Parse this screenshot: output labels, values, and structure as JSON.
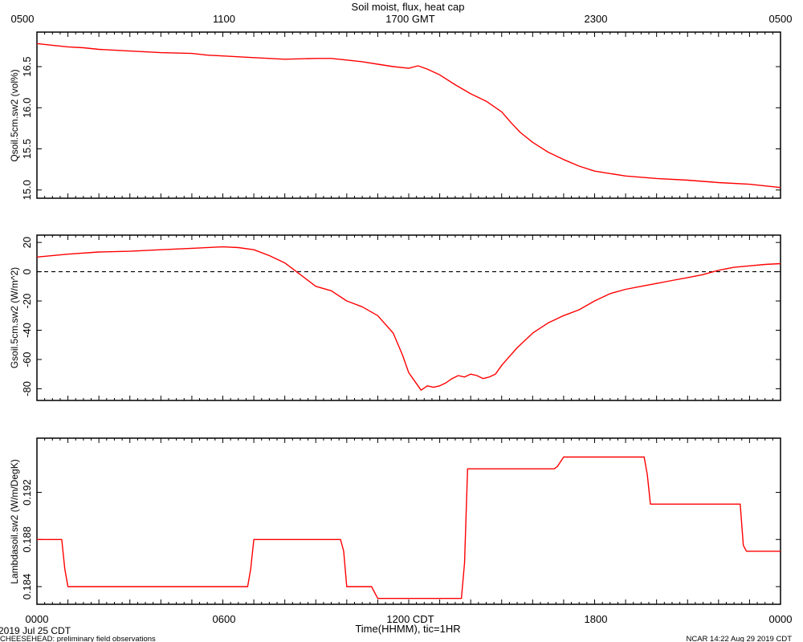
{
  "page": {
    "title": "Soil moist, flux, heat cap",
    "date_label": "2019 Jul 25 CDT",
    "footer_left": "CHEESEHEAD: preliminary field observations",
    "footer_right": "NCAR 14:22 Aug 29 2019 CDT"
  },
  "top_axis": {
    "tick_labels": [
      "0500",
      "1100",
      "1700 GMT",
      "2300",
      "0500"
    ]
  },
  "bottom_axis": {
    "tick_labels": [
      "0000",
      "0600",
      "1200 CDT",
      "1800",
      "0000"
    ],
    "label": "Time(HHMM), tic=1HR"
  },
  "chart_data": [
    {
      "type": "line",
      "ylabel": "Qsoil.5cm.sw2 (vol%)",
      "ylim": [
        14.9,
        16.92
      ],
      "yticks": [
        15.0,
        15.5,
        16.0,
        16.5
      ],
      "ytick_labels": [
        "15.0",
        "15.5",
        "16.0",
        "16.5"
      ],
      "xlim": [
        0,
        24
      ],
      "color": "#ff0000",
      "x": [
        0,
        0.5,
        1,
        1.5,
        2,
        3,
        4,
        5,
        5.5,
        6,
        7,
        8,
        9,
        9.5,
        10,
        10.5,
        11,
        11.5,
        12,
        12.3,
        12.6,
        13,
        13.5,
        14,
        14.5,
        15,
        15.3,
        15.6,
        16,
        16.5,
        17,
        17.5,
        18,
        18.5,
        19,
        20,
        21,
        22,
        23,
        24
      ],
      "y": [
        16.78,
        16.76,
        16.74,
        16.73,
        16.71,
        16.69,
        16.67,
        16.66,
        16.64,
        16.63,
        16.61,
        16.59,
        16.6,
        16.6,
        16.58,
        16.56,
        16.53,
        16.5,
        16.48,
        16.51,
        16.47,
        16.4,
        16.28,
        16.17,
        16.08,
        15.95,
        15.82,
        15.7,
        15.58,
        15.46,
        15.37,
        15.29,
        15.23,
        15.2,
        15.17,
        15.14,
        15.12,
        15.09,
        15.07,
        15.03
      ]
    },
    {
      "type": "line",
      "ylabel": "Gsoil.5cm.sw2 (W/m^2)",
      "ylim": [
        -88,
        25
      ],
      "yticks": [
        20,
        0,
        -20,
        -40,
        -60,
        -80
      ],
      "ytick_labels": [
        "20",
        "0",
        "-20",
        "-40",
        "-60",
        "-80"
      ],
      "reference_line": 0,
      "xlim": [
        0,
        24
      ],
      "color": "#ff0000",
      "x": [
        0,
        1,
        2,
        3,
        4,
        5,
        6,
        6.5,
        7,
        7.5,
        8,
        8.5,
        9,
        9.5,
        10,
        10.5,
        11,
        11.5,
        11.8,
        12,
        12.2,
        12.4,
        12.6,
        12.8,
        13,
        13.2,
        13.4,
        13.6,
        13.8,
        14,
        14.2,
        14.4,
        14.6,
        14.8,
        15,
        15.5,
        16,
        16.5,
        17,
        17.5,
        18,
        18.5,
        19,
        19.5,
        20,
        20.5,
        21,
        21.5,
        22,
        22.5,
        23,
        23.5,
        24
      ],
      "y": [
        10,
        12,
        13.5,
        14,
        15,
        16,
        17,
        16.5,
        15,
        11,
        6,
        -2,
        -10,
        -13,
        -20,
        -24,
        -30,
        -42,
        -57,
        -69,
        -75,
        -81,
        -78,
        -79,
        -78,
        -76,
        -73,
        -71,
        -72,
        -70,
        -71,
        -73,
        -72,
        -70,
        -64,
        -52,
        -42,
        -35,
        -30,
        -26,
        -20,
        -15,
        -12,
        -10,
        -8,
        -6,
        -4,
        -2,
        1,
        3,
        4,
        5,
        5.5
      ]
    },
    {
      "type": "line",
      "ylabel": "Lambdasoil.sw2 (W/m/DegK)",
      "ylim": [
        0.1825,
        0.1966
      ],
      "yticks": [
        0.184,
        0.188,
        0.192
      ],
      "ytick_labels": [
        "0.184",
        "0.188",
        "0.192"
      ],
      "xlim": [
        0,
        24
      ],
      "color": "#ff0000",
      "x": [
        0,
        0.8,
        0.9,
        1.0,
        6.8,
        6.9,
        7.0,
        9.8,
        9.9,
        10.0,
        10.8,
        11.0,
        13.7,
        13.8,
        13.9,
        16.7,
        16.8,
        17.0,
        19.6,
        19.7,
        19.8,
        22.7,
        22.8,
        22.9,
        24
      ],
      "y": [
        0.188,
        0.188,
        0.1855,
        0.184,
        0.184,
        0.1855,
        0.188,
        0.188,
        0.187,
        0.184,
        0.184,
        0.183,
        0.183,
        0.186,
        0.194,
        0.194,
        0.1942,
        0.195,
        0.195,
        0.1935,
        0.191,
        0.191,
        0.1875,
        0.187,
        0.187
      ]
    }
  ]
}
